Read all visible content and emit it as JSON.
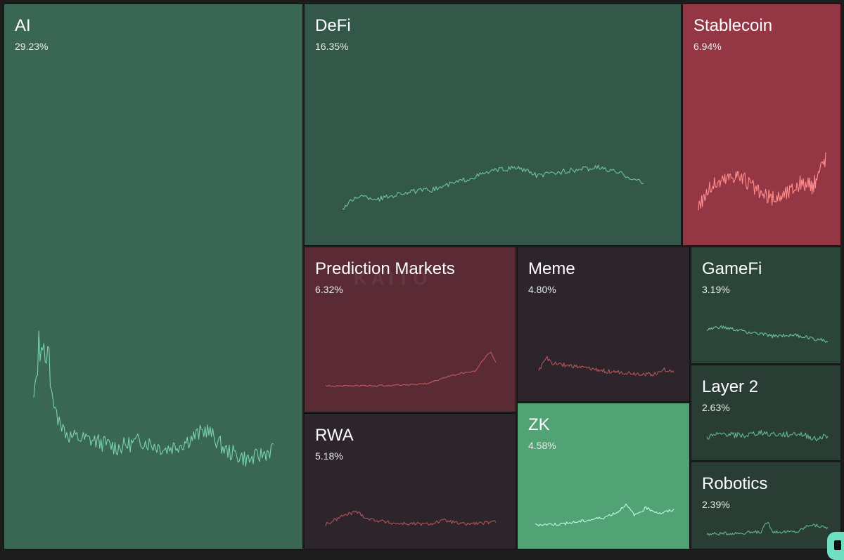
{
  "chart_data": {
    "type": "treemap",
    "title": "",
    "watermark": "KAITO",
    "categories": [
      {
        "name": "AI",
        "value": 29.23,
        "label": "29.23%",
        "color": "#3a6753",
        "line_color": "#7bd2ae",
        "trend": "up"
      },
      {
        "name": "DeFi",
        "value": 16.35,
        "label": "16.35%",
        "color": "#335849",
        "line_color": "#6fc49f",
        "trend": "up"
      },
      {
        "name": "Stablecoin",
        "value": 6.94,
        "label": "6.94%",
        "color": "#943644",
        "line_color": "#ff8c8c",
        "trend": "down"
      },
      {
        "name": "Prediction Markets",
        "value": 6.32,
        "label": "6.32%",
        "color": "#5a2a35",
        "line_color": "#c4585f",
        "trend": "down"
      },
      {
        "name": "Meme",
        "value": 4.8,
        "label": "4.80%",
        "color": "#2e252c",
        "line_color": "#b0555b",
        "trend": "down"
      },
      {
        "name": "GameFi",
        "value": 3.19,
        "label": "3.19%",
        "color": "#2c4539",
        "line_color": "#6cc19c",
        "trend": "up"
      },
      {
        "name": "RWA",
        "value": 5.18,
        "label": "5.18%",
        "color": "#2e252c",
        "line_color": "#b0555b",
        "trend": "down"
      },
      {
        "name": "ZK",
        "value": 4.58,
        "label": "4.58%",
        "color": "#51a274",
        "line_color": "#b9ffe0",
        "trend": "up"
      },
      {
        "name": "Layer 2",
        "value": 2.63,
        "label": "2.63%",
        "color": "#2a3d34",
        "line_color": "#62b792",
        "trend": "up"
      },
      {
        "name": "Robotics",
        "value": 2.39,
        "label": "2.39%",
        "color": "#2a3d34",
        "line_color": "#62b792",
        "trend": "up"
      }
    ]
  }
}
